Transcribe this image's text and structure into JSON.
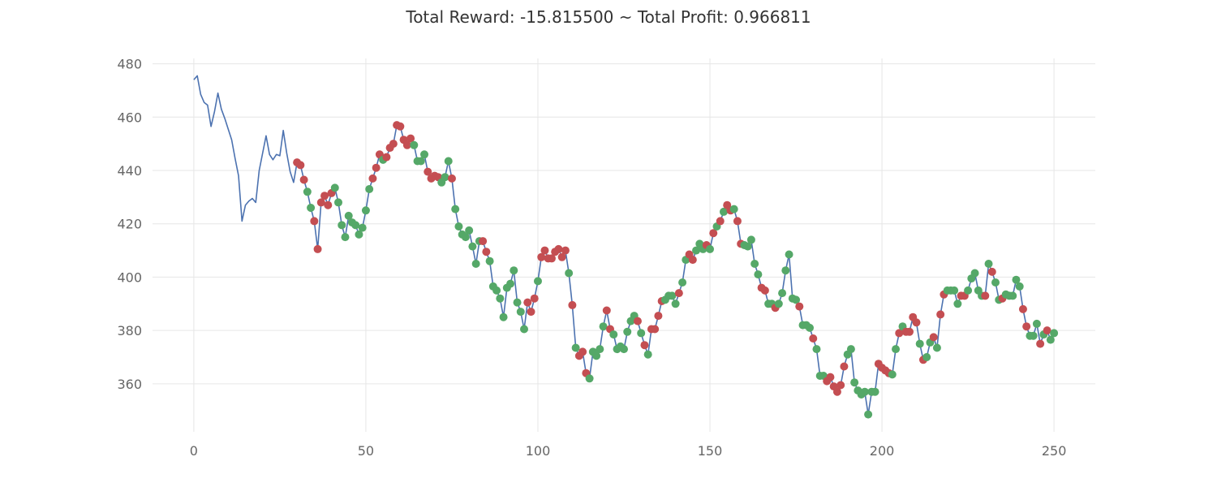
{
  "chart_data": {
    "type": "line",
    "title": "Total Reward: -15.815500 ~ Total Profit: 0.966811",
    "xlabel": "",
    "ylabel": "",
    "xlim": [
      -12,
      262
    ],
    "ylim": [
      342,
      482
    ],
    "x_ticks": [
      0,
      50,
      100,
      150,
      200,
      250
    ],
    "y_ticks": [
      360,
      380,
      400,
      420,
      440,
      460,
      480
    ],
    "grid": true,
    "legend": "none",
    "colors": {
      "line": "#4c72b0",
      "short": "#c44e52",
      "long": "#55a868"
    },
    "series": [
      {
        "values": [
          474.0,
          475.5,
          468.5,
          465.5,
          464.5,
          456.5,
          462.0,
          469.0,
          463.0,
          459.5,
          455.5,
          451.5,
          444.5,
          438.0,
          421.0,
          427.0,
          428.5,
          429.5,
          428.0,
          440.0,
          446.5,
          453.0,
          446.0,
          444.0,
          446.0,
          445.5,
          455.0,
          446.5,
          439.5,
          435.5,
          443.0,
          442.0,
          436.5,
          432.0,
          426.0,
          421.0,
          410.5,
          428.0,
          430.5,
          427.0,
          431.5,
          433.5,
          428.0,
          419.5,
          415.0,
          423.0,
          420.5,
          419.5,
          416.0,
          418.5,
          425.0,
          433.0,
          437.0,
          441.0,
          446.0,
          444.0,
          445.0,
          448.5,
          450.0,
          457.0,
          456.5,
          451.5,
          449.5,
          452.0,
          449.5,
          443.5,
          443.5,
          446.0,
          439.5,
          437.0,
          438.0,
          437.5,
          435.5,
          437.5,
          443.5,
          437.0,
          425.5,
          419.0,
          416.0,
          415.0,
          417.5,
          411.5,
          405.0,
          413.5,
          413.5,
          409.5,
          406.0,
          396.5,
          395.0,
          392.0,
          385.0,
          396.0,
          397.5,
          402.5,
          390.5,
          387.0,
          380.5,
          390.5,
          387.0,
          392.0,
          398.5,
          407.5,
          410.0,
          407.0,
          407.0,
          409.5,
          410.5,
          407.5,
          410.0,
          401.5,
          389.5,
          373.5,
          370.5,
          372.0,
          364.0,
          362.0,
          372.0,
          370.5,
          373.0,
          381.5,
          387.5,
          380.5,
          378.5,
          373.0,
          374.0,
          373.0,
          379.5,
          383.5,
          385.5,
          383.5,
          379.0,
          374.5,
          371.0,
          380.5,
          380.5,
          385.5,
          391.0,
          391.5,
          393.0,
          393.0,
          390.0,
          394.0,
          398.0,
          406.5,
          408.5,
          406.5,
          410.0,
          412.5,
          410.5,
          412.0,
          410.5,
          416.5,
          419.0,
          421.0,
          424.5,
          427.0,
          425.0,
          425.5,
          421.0,
          412.5,
          412.0,
          411.5,
          414.0,
          405.0,
          401.0,
          396.0,
          395.0,
          390.0,
          390.0,
          388.5,
          390.0,
          394.0,
          402.5,
          408.5,
          392.0,
          391.5,
          389.0,
          382.0,
          382.0,
          381.0,
          377.0,
          373.0,
          363.0,
          363.0,
          361.0,
          362.5,
          359.0,
          357.0,
          359.5,
          366.5,
          371.0,
          373.0,
          360.5,
          357.5,
          356.0,
          357.0,
          348.5,
          357.0,
          357.0,
          367.5,
          366.0,
          365.0,
          364.0,
          363.5,
          373.0,
          379.0,
          381.5,
          379.5,
          379.5,
          385.0,
          383.0,
          375.0,
          369.0,
          370.0,
          375.5,
          377.5,
          373.5,
          386.0,
          393.5,
          395.0,
          395.0,
          395.0,
          390.0,
          393.0,
          393.0,
          395.0,
          399.5,
          401.5,
          395.0,
          393.0,
          393.0,
          405.0,
          402.0,
          398.0,
          391.5,
          392.0,
          393.5,
          393.0,
          393.0,
          399.0,
          396.5,
          388.0,
          381.5,
          378.0,
          378.0,
          382.5,
          375.0,
          378.5,
          380.0,
          376.5,
          379.0,
          378.5
        ],
        "short_positions_x": [
          30,
          31,
          32,
          35,
          36,
          37,
          38,
          39,
          40,
          52,
          53,
          54,
          56,
          57,
          58,
          59,
          60,
          61,
          62,
          63,
          68,
          69,
          70,
          71,
          75,
          84,
          85,
          97,
          98,
          99,
          101,
          102,
          103,
          104,
          105,
          106,
          107,
          108,
          110,
          112,
          113,
          114,
          120,
          121,
          129,
          131,
          133,
          134,
          135,
          136,
          141,
          144,
          145,
          149,
          151,
          153,
          155,
          156,
          158,
          159,
          165,
          166,
          169,
          176,
          180,
          184,
          185,
          186,
          187,
          188,
          189,
          199,
          200,
          201,
          202,
          205,
          207,
          208,
          209,
          210,
          212,
          215,
          217,
          218,
          223,
          224,
          230,
          232,
          235,
          241,
          242,
          246,
          248
        ],
        "long_positions_x": [
          33,
          34,
          41,
          42,
          43,
          44,
          45,
          46,
          47,
          48,
          49,
          50,
          51,
          55,
          64,
          65,
          66,
          67,
          72,
          73,
          74,
          76,
          77,
          78,
          79,
          80,
          81,
          82,
          83,
          86,
          87,
          88,
          89,
          90,
          91,
          92,
          93,
          94,
          95,
          96,
          100,
          109,
          111,
          115,
          116,
          117,
          118,
          119,
          122,
          123,
          124,
          125,
          126,
          127,
          128,
          130,
          132,
          137,
          138,
          139,
          140,
          142,
          143,
          146,
          147,
          148,
          150,
          152,
          154,
          157,
          160,
          161,
          162,
          163,
          164,
          167,
          168,
          170,
          171,
          172,
          173,
          174,
          175,
          177,
          178,
          179,
          181,
          182,
          183,
          190,
          191,
          192,
          193,
          194,
          195,
          196,
          197,
          198,
          203,
          204,
          206,
          211,
          213,
          214,
          216,
          219,
          220,
          221,
          222,
          225,
          226,
          227,
          228,
          229,
          231,
          233,
          234,
          236,
          237,
          238,
          239,
          240,
          243,
          244,
          245,
          247,
          249,
          250
        ]
      }
    ]
  }
}
